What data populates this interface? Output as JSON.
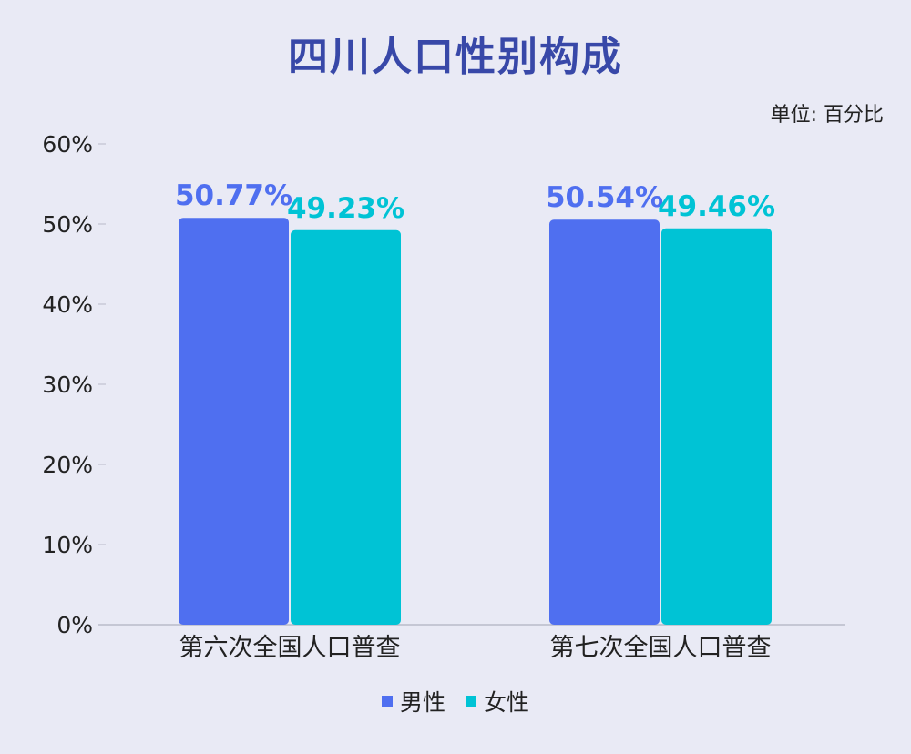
{
  "chart_data": {
    "type": "bar",
    "title": "四川人口性别构成",
    "unit_label": "单位: 百分比",
    "categories": [
      "第六次全国人口普查",
      "第七次全国人口普查"
    ],
    "series": [
      {
        "name": "男性",
        "values": [
          50.77,
          50.54
        ],
        "labels": [
          "50.77%",
          "50.54%"
        ],
        "color": "#4f6ff0"
      },
      {
        "name": "女性",
        "values": [
          49.23,
          49.46
        ],
        "labels": [
          "49.23%",
          "49.46%"
        ],
        "color": "#00c3d5"
      }
    ],
    "yticks": [
      "0%",
      "10%",
      "20%",
      "30%",
      "40%",
      "50%",
      "60%"
    ],
    "ylim": [
      0,
      60
    ],
    "grid": false,
    "legend_position": "bottom",
    "title_color": "#3848a8",
    "background": "#e9eaf5"
  }
}
